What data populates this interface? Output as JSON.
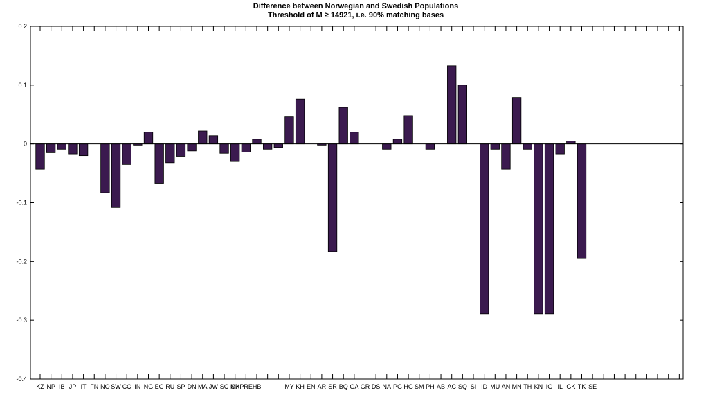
{
  "chart_data": {
    "type": "bar",
    "title": "Difference between Norwegian and Swedish Populations",
    "subtitle": "Threshold of M ≥ 14921, i.e. 90% matching bases",
    "xlabel": "",
    "ylabel": "",
    "ylim": [
      -0.4,
      0.2
    ],
    "yticks": [
      "0.2",
      "0.1",
      "0",
      "-0.1",
      "-0.2",
      "-0.3",
      "-0.4"
    ],
    "grid": false,
    "bar_color": "#3b1a4f",
    "categories": [
      "KZ",
      "NP",
      "IB",
      "JP",
      "IT",
      "FN",
      "NO",
      "SW",
      "CC",
      "IN",
      "NG",
      "EG",
      "RU",
      "SP",
      "DN",
      "MA",
      "JW",
      "SC",
      "MX",
      "CH",
      "PR",
      "EH",
      "B",
      "MY",
      "KH",
      "EN",
      "AR",
      "SR",
      "BQ",
      "GA",
      "GR",
      "DS",
      "NA",
      "PG",
      "HG",
      "SM",
      "PH",
      "AB",
      "AC",
      "SQ",
      "SI",
      "ID",
      "MU",
      "AN",
      "MN",
      "TH",
      "KN",
      "IG",
      "IL",
      "GK",
      "TK",
      "SE"
    ],
    "category_labels": [
      "KZ",
      "NP",
      "IB",
      "JP",
      "IT",
      "FN",
      "NO",
      "SW",
      "CC",
      "IN",
      "NG",
      "EG",
      "RU",
      "SP",
      "DN",
      "MA",
      "JW",
      "SC",
      "MX",
      "CHPREHB",
      "",
      "",
      "",
      "MY",
      "KH",
      "EN",
      "AR",
      "SR",
      "BQ",
      "GA",
      "GR",
      "DS",
      "NA",
      "PG",
      "HG",
      "SM",
      "PH",
      "AB",
      "AC",
      "SQ",
      "SI",
      "ID",
      "MU",
      "AN",
      "MN",
      "TH",
      "KN",
      "IG",
      "IL",
      "GK",
      "TK",
      "SE"
    ],
    "values": [
      -0.043,
      -0.015,
      -0.009,
      -0.017,
      -0.02,
      0,
      -0.083,
      -0.108,
      -0.035,
      -0.002,
      0.02,
      -0.067,
      -0.032,
      -0.021,
      -0.012,
      0.022,
      0.014,
      -0.016,
      -0.03,
      -0.014,
      0.008,
      -0.009,
      -0.006,
      0.046,
      0.076,
      0,
      -0.002,
      -0.183,
      0.062,
      0.02,
      0,
      0,
      -0.009,
      0.008,
      0.048,
      0,
      -0.009,
      0,
      0.133,
      0.1,
      0,
      -0.289,
      -0.009,
      -0.043,
      0.079,
      -0.009,
      -0.289,
      -0.289,
      -0.017,
      0.005,
      -0.195,
      0
    ]
  }
}
